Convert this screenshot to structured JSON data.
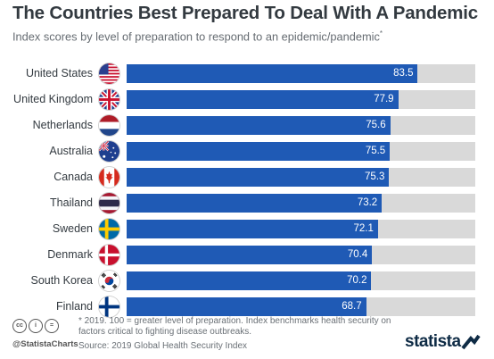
{
  "header": {
    "title": "The Countries Best Prepared To Deal With A Pandemic",
    "subtitle": "Index scores by level of preparation to respond to an epidemic/pandemic",
    "subtitle_marker": "*"
  },
  "chart_data": {
    "type": "bar",
    "orientation": "horizontal",
    "categories": [
      "United States",
      "United Kingdom",
      "Netherlands",
      "Australia",
      "Canada",
      "Thailand",
      "Sweden",
      "Denmark",
      "South Korea",
      "Finland"
    ],
    "values": [
      83.5,
      77.9,
      75.6,
      75.5,
      75.3,
      73.2,
      72.1,
      70.4,
      70.2,
      68.7
    ],
    "value_labels": [
      "83.5",
      "77.9",
      "75.6",
      "75.5",
      "75.3",
      "73.2",
      "72.1",
      "70.4",
      "70.2",
      "68.7"
    ],
    "xlim": [
      0,
      100
    ],
    "bar_color": "#1f5ab5",
    "track_color": "#d9d9d9",
    "flags": [
      "us-flag-icon",
      "uk-flag-icon",
      "netherlands-flag-icon",
      "australia-flag-icon",
      "canada-flag-icon",
      "thailand-flag-icon",
      "sweden-flag-icon",
      "denmark-flag-icon",
      "south-korea-flag-icon",
      "finland-flag-icon"
    ]
  },
  "footer": {
    "note": "* 2019. 100 = greater level of preparation. Index benchmarks health security on factors critical to fighting disease outbreaks.",
    "source": "Source: 2019 Global Health Security Index",
    "handle": "@StatistaCharts",
    "cc_icons": [
      "cc",
      "i",
      "="
    ],
    "logo": "statista",
    "accent": "#0e2b45"
  }
}
